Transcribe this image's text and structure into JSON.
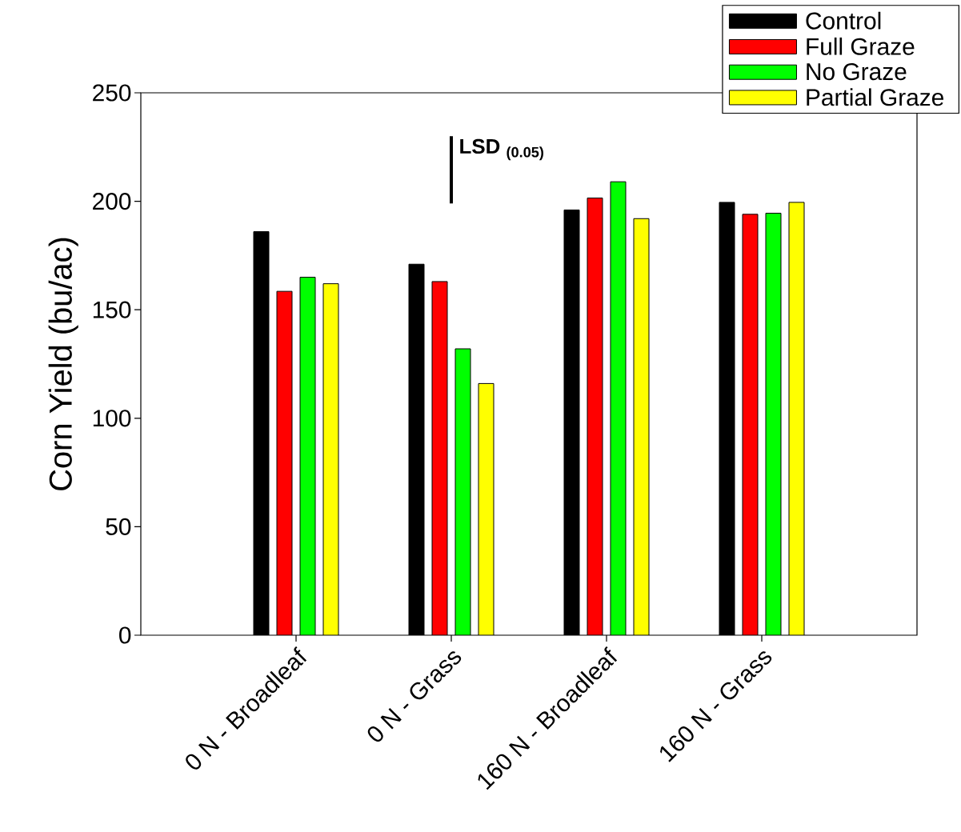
{
  "chart_data": {
    "type": "bar",
    "ylabel": "Corn Yield (bu/ac)",
    "categories": [
      "0 N - Broadleaf",
      "0 N - Grass",
      "160 N - Broadleaf",
      "160 N - Grass"
    ],
    "series": [
      {
        "name": "Control",
        "color": "#000000",
        "values": [
          186,
          171,
          196,
          199.5
        ]
      },
      {
        "name": "Full Graze",
        "color": "#ff0000",
        "values": [
          158.5,
          163,
          201.5,
          194
        ]
      },
      {
        "name": "No Graze",
        "color": "#00ff00",
        "values": [
          165,
          132,
          209,
          194.5
        ]
      },
      {
        "name": "Partial Graze",
        "color": "#ffff00",
        "values": [
          162,
          116,
          192,
          199.5
        ]
      },
      {
        "type": "line",
        "color": "#000000",
        "x": [
          "0 N - Grass",
          "0 N - Grass"
        ],
        "values": [
          199,
          230
        ]
      }
    ],
    "annotations": [
      "LSD $_{(0.05)}$"
    ],
    "ylim": [
      0,
      250
    ],
    "yticks": [
      0,
      50,
      100,
      150,
      200,
      250
    ],
    "legend": "top right",
    "grid": false
  }
}
